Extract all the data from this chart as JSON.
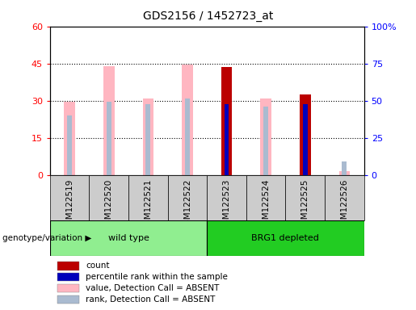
{
  "title": "GDS2156 / 1452723_at",
  "samples": [
    "GSM122519",
    "GSM122520",
    "GSM122521",
    "GSM122522",
    "GSM122523",
    "GSM122524",
    "GSM122525",
    "GSM122526"
  ],
  "absent_value": [
    29.5,
    44.0,
    31.0,
    44.5,
    null,
    31.0,
    null,
    1.5
  ],
  "absent_rank": [
    24.0,
    29.5,
    28.5,
    31.0,
    null,
    27.5,
    null,
    5.5
  ],
  "present_count": [
    null,
    null,
    null,
    null,
    43.5,
    null,
    32.5,
    null
  ],
  "present_rank": [
    null,
    null,
    null,
    null,
    28.5,
    null,
    28.5,
    null
  ],
  "ylim": [
    0,
    60
  ],
  "yticks": [
    0,
    15,
    30,
    45,
    60
  ],
  "ytick_labels_left": [
    "0",
    "15",
    "30",
    "45",
    "60"
  ],
  "ytick_labels_right": [
    "0",
    "25",
    "50",
    "75",
    "100%"
  ],
  "colors": {
    "count": "#BB0000",
    "rank": "#0000BB",
    "absent_value": "#FFB6C1",
    "absent_rank": "#AABBD0"
  },
  "legend_items": [
    {
      "label": "count",
      "color": "#BB0000"
    },
    {
      "label": "percentile rank within the sample",
      "color": "#0000BB"
    },
    {
      "label": "value, Detection Call = ABSENT",
      "color": "#FFB6C1"
    },
    {
      "label": "rank, Detection Call = ABSENT",
      "color": "#AABBD0"
    }
  ],
  "genotype_label": "genotype/variation",
  "wt_color": "#90EE90",
  "brg_color": "#22CC22",
  "bg_color": "#FFFFFF",
  "plot_bg": "#FFFFFF",
  "tick_box_color": "#CCCCCC"
}
